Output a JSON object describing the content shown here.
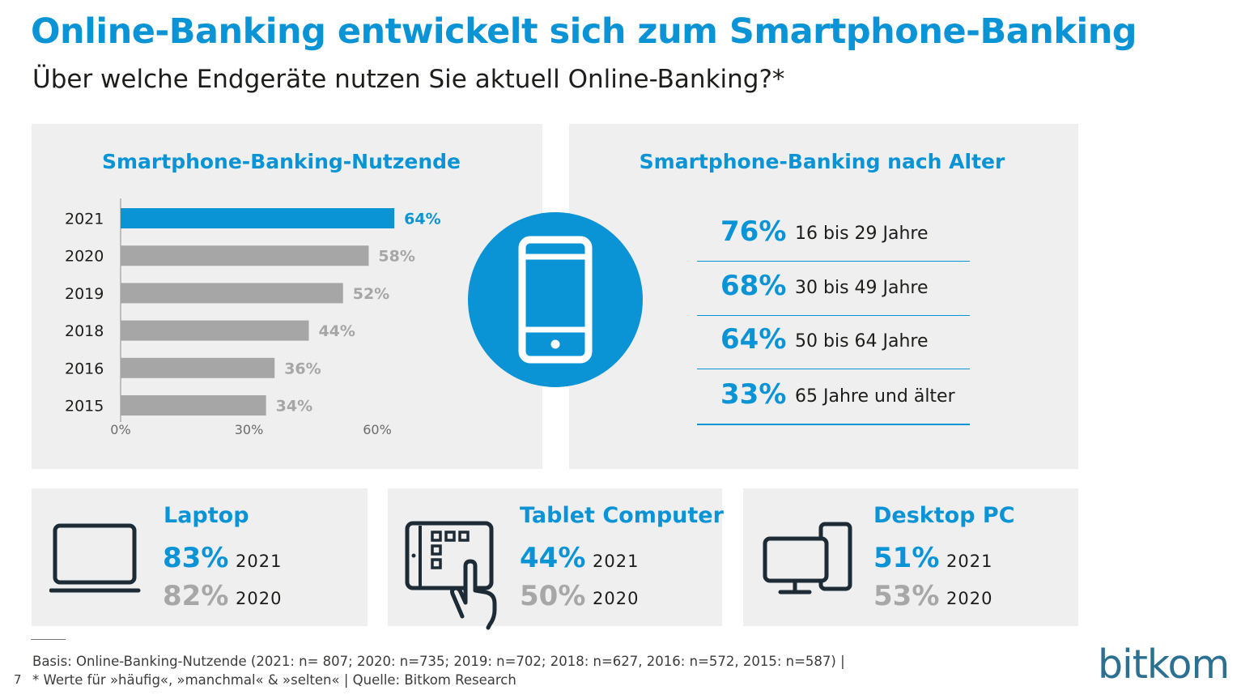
{
  "header": {
    "title": "Online-Banking entwickelt sich zum Smartphone-Banking",
    "subtitle": "Über welche Endgeräte nutzen Sie aktuell Online-Banking?*"
  },
  "left_panel": {
    "title": "Smartphone-Banking-Nutzende"
  },
  "right_panel": {
    "title": "Smartphone-Banking nach Alter"
  },
  "chart_data": {
    "type": "bar",
    "orientation": "horizontal",
    "title": "Smartphone-Banking-Nutzende",
    "categories": [
      "2021",
      "2020",
      "2019",
      "2018",
      "2016",
      "2015"
    ],
    "values": [
      64,
      58,
      52,
      44,
      36,
      34
    ],
    "value_labels": [
      "64%",
      "58%",
      "52%",
      "44%",
      "36%",
      "34%"
    ],
    "xlim": [
      0,
      60
    ],
    "xticks": [
      0,
      30,
      60
    ],
    "xtick_labels": [
      "0%",
      "30%",
      "60%"
    ],
    "grid": false,
    "colors": {
      "highlight": "#0a94d6",
      "default": "#a6a6a6"
    },
    "highlight_index": 0
  },
  "age_groups": [
    {
      "pct": "76%",
      "label": "16 bis 29 Jahre"
    },
    {
      "pct": "68%",
      "label": "30 bis 49 Jahre"
    },
    {
      "pct": "64%",
      "label": "50 bis 64 Jahre"
    },
    {
      "pct": "33%",
      "label": "65 Jahre und älter"
    }
  ],
  "devices": [
    {
      "name": "Laptop",
      "icon": "laptop-icon",
      "cur_pct": "83%",
      "cur_year": "2021",
      "prev_pct": "82%",
      "prev_year": "2020"
    },
    {
      "name": "Tablet Computer",
      "icon": "tablet-touch-icon",
      "cur_pct": "44%",
      "cur_year": "2021",
      "prev_pct": "50%",
      "prev_year": "2020"
    },
    {
      "name": "Desktop PC",
      "icon": "desktop-pc-icon",
      "cur_pct": "51%",
      "cur_year": "2021",
      "prev_pct": "53%",
      "prev_year": "2020"
    }
  ],
  "footer": {
    "note1": "Basis: Online-Banking-Nutzende (2021: n= 807; 2020: n=735; 2019: n=702; 2018: n=627, 2016: n=572, 2015: n=587) |",
    "note2": "* Werte für »häufig«, »manchmal« & »selten« | Quelle: Bitkom Research",
    "page_number": "7",
    "logo": "bitkom"
  },
  "colors": {
    "accent": "#0a94d6",
    "panel_bg": "#efefef",
    "muted": "#a7a7a7",
    "icon_dark": "#1d2b36"
  },
  "icons": {
    "center": "smartphone-icon"
  }
}
